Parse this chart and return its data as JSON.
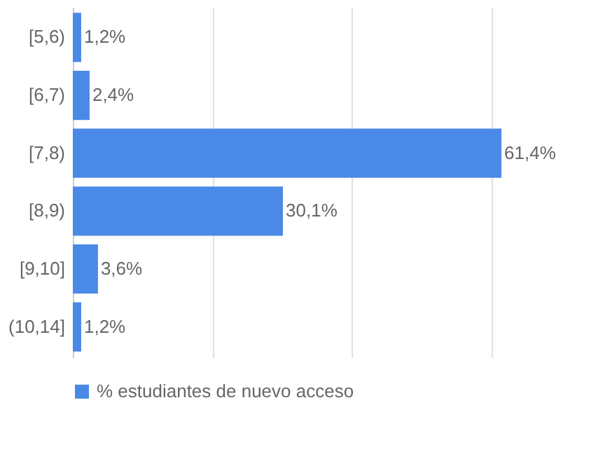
{
  "chart_data": {
    "type": "bar",
    "orientation": "horizontal",
    "categories": [
      "[5,6)",
      "[6,7)",
      "[7,8)",
      "[8,9)",
      "[9,10]",
      "(10,14]"
    ],
    "series": [
      {
        "name": "% estudiantes de nuevo acceso",
        "color": "#4a8ae6",
        "values": [
          1.2,
          2.4,
          61.4,
          30.1,
          3.6,
          1.2
        ],
        "value_labels": [
          "1,2%",
          "2,4%",
          "61,4%",
          "30,1%",
          "3,6%",
          "1,2%"
        ]
      }
    ],
    "tick_labels": "y",
    "grid": "x",
    "legend": "bottom"
  }
}
